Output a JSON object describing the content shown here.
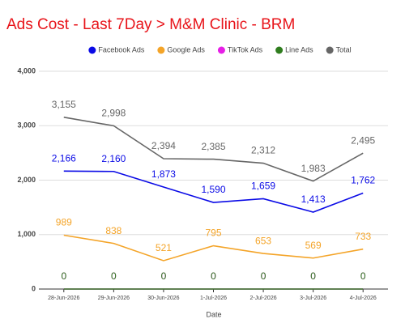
{
  "chart_data": {
    "type": "line",
    "title": "Ads Cost - Last 7Day > M&M Clinic - BRM",
    "x_label": "Date",
    "categories": [
      "28-Jun-2026",
      "29-Jun-2026",
      "30-Jun-2026",
      "1-Jul-2026",
      "2-Jul-2026",
      "3-Jul-2026",
      "4-Jul-2026"
    ],
    "series": [
      {
        "name": "Facebook Ads",
        "color": "#0a0ae6",
        "values": [
          2166,
          2160,
          1873,
          1590,
          1659,
          1413,
          1762
        ],
        "value_labels": [
          "2,166",
          "2,160",
          "1,873",
          "1,590",
          "1,659",
          "1,413",
          "1,762"
        ]
      },
      {
        "name": "Google Ads",
        "color": "#f4a428",
        "values": [
          989,
          838,
          521,
          795,
          653,
          569,
          733
        ]
      },
      {
        "name": "TikTok Ads",
        "color": "#e61ee6",
        "values": [
          0,
          0,
          0,
          0,
          0,
          0,
          0
        ]
      },
      {
        "name": "Line Ads",
        "color": "#2f7d1e",
        "values": [
          0,
          0,
          0,
          0,
          0,
          0,
          0
        ]
      },
      {
        "name": "Total",
        "color": "#666666",
        "values": [
          3155,
          2998,
          2394,
          2385,
          2312,
          1983,
          2495
        ],
        "value_labels": [
          "3,155",
          "2,998",
          "2,394",
          "2,385",
          "2,312",
          "1,983",
          "2,495"
        ]
      }
    ],
    "ylim": [
      0,
      4000
    ],
    "yticks": [
      0,
      {
        "value": 1000,
        "label": "1,000"
      },
      {
        "value": 2000,
        "label": "2,000"
      },
      {
        "value": 3000,
        "label": "3,000"
      },
      {
        "value": 4000,
        "label": "4,000"
      }
    ],
    "grid": true
  }
}
